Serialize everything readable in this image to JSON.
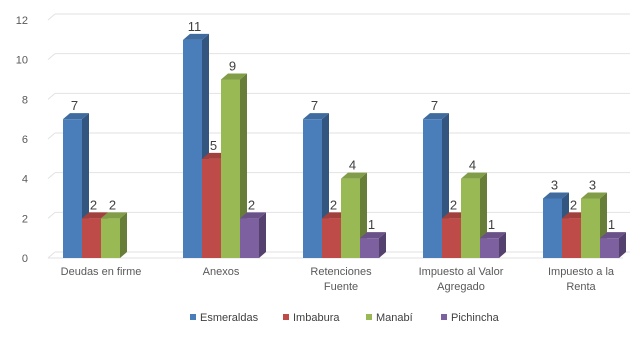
{
  "chart_data": {
    "type": "bar",
    "title": "",
    "xlabel": "",
    "ylabel": "",
    "ylim": [
      0,
      12
    ],
    "yticks": [
      0,
      2,
      4,
      6,
      8,
      10,
      12
    ],
    "grid": true,
    "legend_position": "bottom",
    "style": "3d-clustered-column",
    "categories": [
      [
        "Deudas en firme"
      ],
      [
        "Anexos"
      ],
      [
        "Retenciones",
        "Fuente"
      ],
      [
        "Impuesto al Valor",
        "Agregado"
      ],
      [
        "Impuesto a la",
        "Renta"
      ]
    ],
    "series": [
      {
        "name": "Esmeraldas",
        "color": "#4a7ebb",
        "values": [
          7,
          11,
          7,
          7,
          3
        ]
      },
      {
        "name": "Imbabura",
        "color": "#be4b48",
        "values": [
          2,
          5,
          2,
          2,
          2
        ]
      },
      {
        "name": "Manabí",
        "color": "#98b954",
        "values": [
          2,
          9,
          4,
          4,
          3
        ]
      },
      {
        "name": "Pichincha",
        "color": "#7d60a0",
        "values": [
          0,
          2,
          1,
          1,
          1
        ]
      }
    ],
    "data_labels": [
      [
        "7",
        "11",
        "7",
        "7",
        "3"
      ],
      [
        "2",
        "5",
        "2",
        "2",
        "2"
      ],
      [
        "2",
        "9",
        "4",
        "4",
        "3"
      ],
      [
        "",
        "2",
        "1",
        "1",
        "1"
      ]
    ]
  }
}
